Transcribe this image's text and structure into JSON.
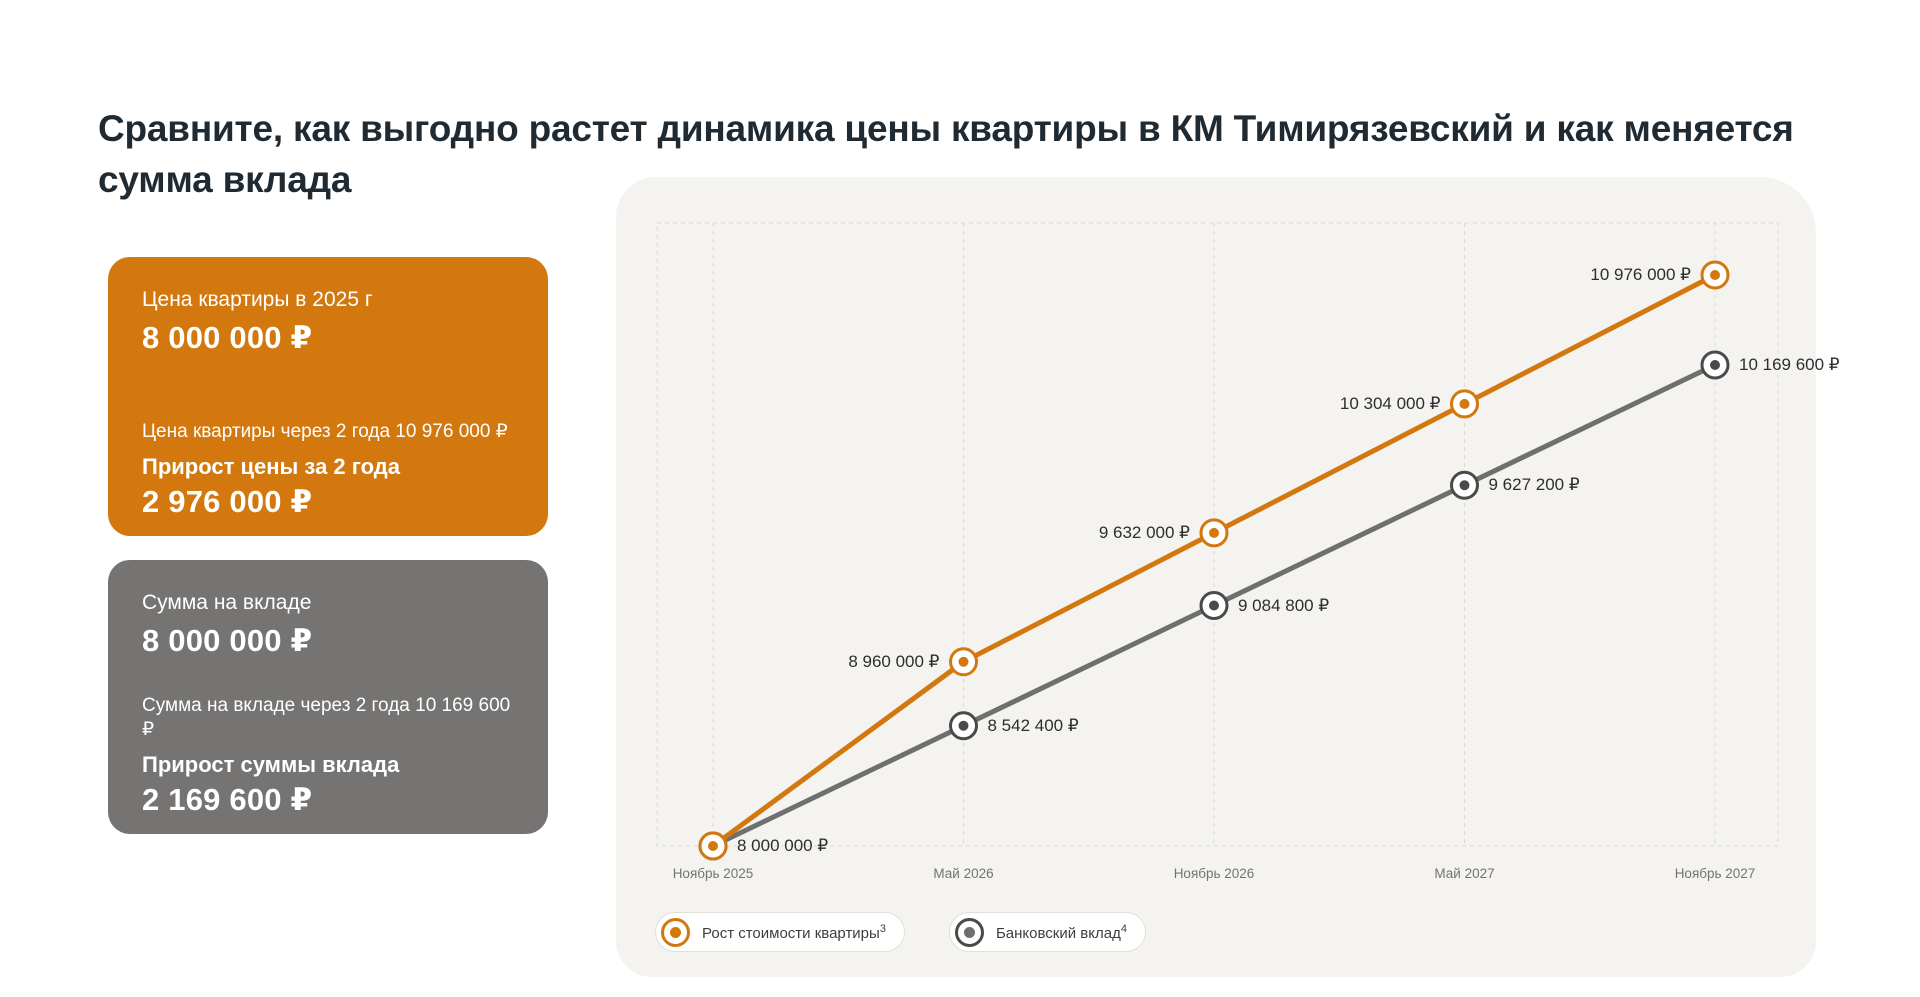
{
  "header": {
    "title_lines": [
      "Сравните, как выгодно растет динамика цены квартиры в КМ Тимирязевский и как меняется",
      "сумма вклада"
    ]
  },
  "cards": {
    "apartment": {
      "accent": "#d2780f",
      "label_now": "Цена квартиры в 2025 г",
      "value_now": "8 000 000 ₽",
      "label_future": "Цена квартиры через 2 года 10 976 000 ₽",
      "label_growth": "Прирост цены за 2 года",
      "value_growth": "2 976 000 ₽"
    },
    "deposit": {
      "accent": "#767472",
      "label_now": "Сумма на вкладе",
      "value_now": "8 000 000 ₽",
      "label_future": "Сумма на вкладе через 2 года 10 169 600 ₽",
      "label_growth": "Прирост суммы вклада",
      "value_growth": "2 169 600 ₽"
    }
  },
  "chart_data": {
    "type": "line",
    "title": "",
    "categories": [
      "Ноябрь 2025",
      "Май 2026",
      "Ноябрь 2026",
      "Май 2027",
      "Ноябрь 2027"
    ],
    "series": [
      {
        "name": "Рост стоимости квартиры",
        "footnote": "3",
        "color": "#d2780f",
        "marker_color": "#d2780f",
        "values": [
          8000000,
          8960000,
          9632000,
          10304000,
          10976000
        ],
        "point_labels": [
          "8 000 000 ₽",
          "8 960 000 ₽",
          "9 632 000 ₽",
          "10 304 000 ₽",
          "10 976 000 ₽"
        ]
      },
      {
        "name": "Банковский вклад",
        "footnote": "4",
        "color": "#6f6f6f",
        "marker_color": "#4a4a4a",
        "values": [
          8000000,
          8542400,
          9084800,
          9627200,
          10169600
        ],
        "point_labels": [
          "8 000 000 ₽",
          "8 542 400 ₽",
          "9 084 800 ₽",
          "9 627 200 ₽",
          "10 169 600 ₽"
        ]
      }
    ],
    "ylim": [
      8000000,
      10976000
    ],
    "grid": "dashed-columns-and-frame",
    "grid_color": "#d9d8d3",
    "legend_position": "bottom-left"
  }
}
